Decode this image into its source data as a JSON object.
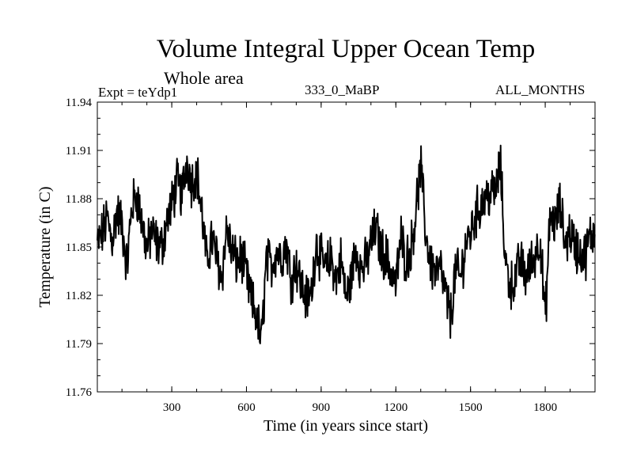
{
  "header": {
    "title": "Volume Integral Upper Ocean Temp",
    "subtitle": "Whole area",
    "experiment": "Expt = teYdp1",
    "period": "333_0_MaBP",
    "months": "ALL_MONTHS"
  },
  "chart_data": {
    "type": "line",
    "title": "Volume Integral Upper Ocean Temp",
    "xlabel": "Time (in years since start)",
    "ylabel": "Temperature (in C)",
    "xlim": [
      1,
      2000
    ],
    "ylim": [
      11.76,
      11.94
    ],
    "xticks": [
      300,
      600,
      900,
      1200,
      1500,
      1800
    ],
    "yticks": [
      11.76,
      11.79,
      11.82,
      11.85,
      11.88,
      11.91,
      11.94
    ],
    "xtick_labels": [
      "300",
      "600",
      "900",
      "1200",
      "1500",
      "1800"
    ],
    "ytick_labels": [
      "11.76",
      "11.79",
      "11.82",
      "11.85",
      "11.88",
      "11.91",
      "11.94"
    ],
    "series": [
      {
        "name": "Volume integral upper ocean temperature",
        "x": [
          1,
          20,
          40,
          60,
          80,
          100,
          120,
          140,
          160,
          180,
          200,
          220,
          240,
          260,
          280,
          300,
          320,
          340,
          360,
          380,
          400,
          420,
          440,
          460,
          480,
          500,
          520,
          540,
          560,
          580,
          600,
          620,
          640,
          660,
          680,
          700,
          720,
          740,
          760,
          780,
          800,
          820,
          840,
          860,
          880,
          900,
          920,
          940,
          960,
          980,
          1000,
          1020,
          1040,
          1060,
          1080,
          1100,
          1120,
          1140,
          1160,
          1180,
          1200,
          1220,
          1240,
          1260,
          1280,
          1300,
          1320,
          1340,
          1360,
          1380,
          1400,
          1420,
          1440,
          1460,
          1480,
          1500,
          1520,
          1540,
          1560,
          1580,
          1600,
          1620,
          1640,
          1660,
          1680,
          1700,
          1720,
          1740,
          1760,
          1780,
          1800,
          1820,
          1840,
          1860,
          1880,
          1900,
          1920,
          1940,
          1960,
          1980,
          2000
        ],
        "values": [
          11.852,
          11.858,
          11.868,
          11.854,
          11.872,
          11.864,
          11.838,
          11.876,
          11.882,
          11.866,
          11.848,
          11.86,
          11.852,
          11.85,
          11.866,
          11.876,
          11.89,
          11.882,
          11.904,
          11.89,
          11.898,
          11.872,
          11.84,
          11.856,
          11.844,
          11.83,
          11.862,
          11.848,
          11.84,
          11.844,
          11.832,
          11.816,
          11.808,
          11.79,
          11.842,
          11.838,
          11.848,
          11.844,
          11.852,
          11.83,
          11.84,
          11.826,
          11.818,
          11.82,
          11.854,
          11.842,
          11.836,
          11.844,
          11.83,
          11.842,
          11.818,
          11.83,
          11.85,
          11.836,
          11.84,
          11.852,
          11.862,
          11.848,
          11.844,
          11.836,
          11.826,
          11.856,
          11.842,
          11.848,
          11.872,
          11.9,
          11.858,
          11.84,
          11.834,
          11.836,
          11.82,
          11.806,
          11.836,
          11.83,
          11.852,
          11.858,
          11.87,
          11.876,
          11.88,
          11.884,
          11.884,
          11.902,
          11.84,
          11.826,
          11.83,
          11.842,
          11.832,
          11.838,
          11.846,
          11.856,
          11.804,
          11.87,
          11.864,
          11.876,
          11.852,
          11.86,
          11.85,
          11.846,
          11.844,
          11.856,
          11.86
        ]
      }
    ]
  }
}
